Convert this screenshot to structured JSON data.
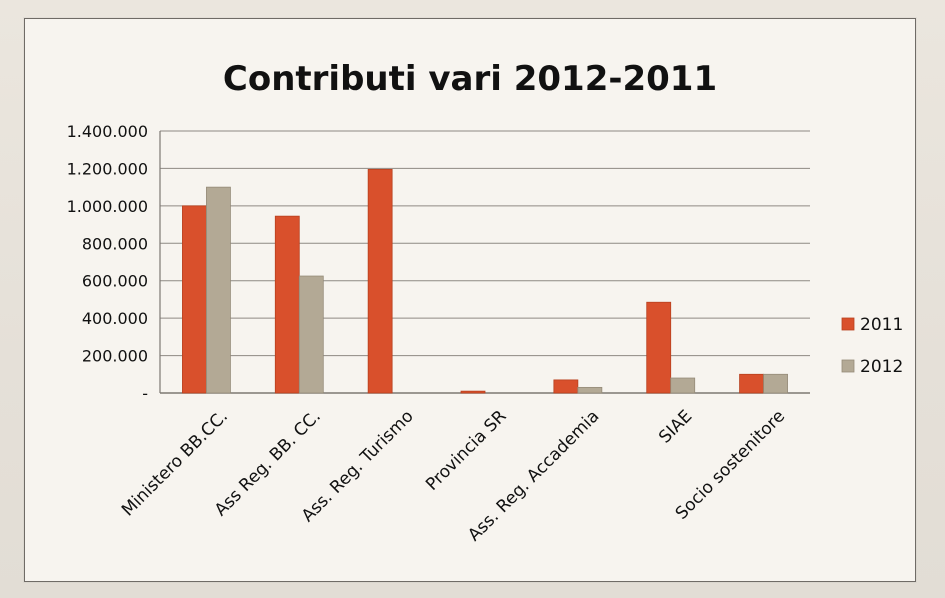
{
  "chart_data": {
    "type": "bar",
    "title": "Contributi vari 2012-2011",
    "categories": [
      "Ministero BB.CC.",
      "Ass Reg. BB. CC.",
      "Ass. Reg. Turismo",
      "Provincia SR",
      "Ass. Reg. Accademia",
      "SIAE",
      "Socio sostenitore"
    ],
    "series": [
      {
        "name": "2011",
        "color": "#d9502c",
        "values": [
          1000000,
          945000,
          1195000,
          10000,
          70000,
          485000,
          100000
        ]
      },
      {
        "name": "2012",
        "color": "#b3a995",
        "values": [
          1100000,
          625000,
          0,
          0,
          30000,
          80000,
          100000
        ]
      }
    ],
    "ylim": [
      0,
      1400000
    ],
    "yticks": [
      "-",
      "200.000",
      "400.000",
      "600.000",
      "800.000",
      "1.000.000",
      "1.200.000",
      "1.400.000"
    ],
    "xlabel": "",
    "ylabel": "",
    "grid": true,
    "legend_position": "right"
  }
}
